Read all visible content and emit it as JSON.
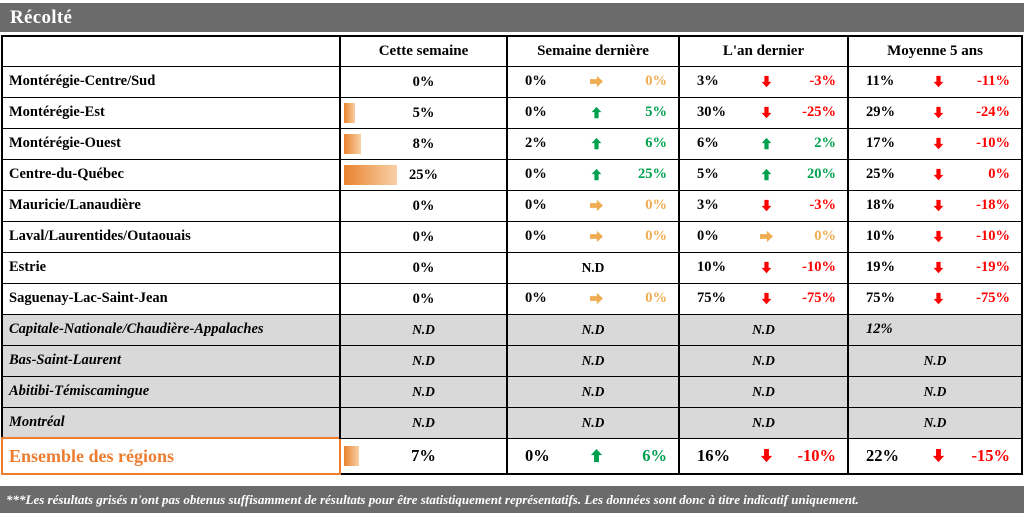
{
  "title": "Récolté",
  "headers": {
    "this_week": "Cette semaine",
    "last_week": "Semaine dernière",
    "last_year": "L'an dernier",
    "avg_5yr": "Moyenne 5 ans"
  },
  "labels": {
    "nd": "N.D"
  },
  "colors": {
    "orange": "#F0AC52",
    "green": "#00A14E",
    "red": "#FF0000",
    "brand": "#ED7D31",
    "bar_bg": "#6B6B6B",
    "gray_bg": "#D9D9D9",
    "bar_start": "#E9832E",
    "bar_end": "#F8D0A6"
  },
  "rows": [
    {
      "region": "Montérégie-Centre/Sud",
      "grayed": false,
      "this_week": {
        "value": "0%",
        "bar_pct": 0
      },
      "last_week": {
        "value": "0%",
        "arrow": "right",
        "delta": "0%",
        "tone": "orange"
      },
      "last_year": {
        "value": "3%",
        "arrow": "down",
        "delta": "-3%",
        "tone": "red"
      },
      "avg_5yr": {
        "value": "11%",
        "arrow": "down",
        "delta": "-11%",
        "tone": "red"
      }
    },
    {
      "region": "Montérégie-Est",
      "grayed": false,
      "this_week": {
        "value": "5%",
        "bar_pct": 5
      },
      "last_week": {
        "value": "0%",
        "arrow": "up",
        "delta": "5%",
        "tone": "green"
      },
      "last_year": {
        "value": "30%",
        "arrow": "down",
        "delta": "-25%",
        "tone": "red"
      },
      "avg_5yr": {
        "value": "29%",
        "arrow": "down",
        "delta": "-24%",
        "tone": "red"
      }
    },
    {
      "region": "Montérégie-Ouest",
      "grayed": false,
      "this_week": {
        "value": "8%",
        "bar_pct": 8
      },
      "last_week": {
        "value": "2%",
        "arrow": "up",
        "delta": "6%",
        "tone": "green"
      },
      "last_year": {
        "value": "6%",
        "arrow": "up",
        "delta": "2%",
        "tone": "green"
      },
      "avg_5yr": {
        "value": "17%",
        "arrow": "down",
        "delta": "-10%",
        "tone": "red"
      }
    },
    {
      "region": "Centre-du-Québec",
      "grayed": false,
      "this_week": {
        "value": "25%",
        "bar_pct": 25
      },
      "last_week": {
        "value": "0%",
        "arrow": "up",
        "delta": "25%",
        "tone": "green"
      },
      "last_year": {
        "value": "5%",
        "arrow": "up",
        "delta": "20%",
        "tone": "green"
      },
      "avg_5yr": {
        "value": "25%",
        "arrow": "down",
        "delta": "0%",
        "tone": "red"
      }
    },
    {
      "region": "Mauricie/Lanaudière",
      "grayed": false,
      "this_week": {
        "value": "0%",
        "bar_pct": 0
      },
      "last_week": {
        "value": "0%",
        "arrow": "right",
        "delta": "0%",
        "tone": "orange"
      },
      "last_year": {
        "value": "3%",
        "arrow": "down",
        "delta": "-3%",
        "tone": "red"
      },
      "avg_5yr": {
        "value": "18%",
        "arrow": "down",
        "delta": "-18%",
        "tone": "red"
      }
    },
    {
      "region": "Laval/Laurentides/Outaouais",
      "grayed": false,
      "this_week": {
        "value": "0%",
        "bar_pct": 0
      },
      "last_week": {
        "value": "0%",
        "arrow": "right",
        "delta": "0%",
        "tone": "orange"
      },
      "last_year": {
        "value": "0%",
        "arrow": "right",
        "delta": "0%",
        "tone": "orange"
      },
      "avg_5yr": {
        "value": "10%",
        "arrow": "down",
        "delta": "-10%",
        "tone": "red"
      }
    },
    {
      "region": "Estrie",
      "grayed": false,
      "this_week": {
        "value": "0%",
        "bar_pct": 0
      },
      "last_week": {
        "nd": true
      },
      "last_year": {
        "value": "10%",
        "arrow": "down",
        "delta": "-10%",
        "tone": "red"
      },
      "avg_5yr": {
        "value": "19%",
        "arrow": "down",
        "delta": "-19%",
        "tone": "red"
      }
    },
    {
      "region": "Saguenay-Lac-Saint-Jean",
      "grayed": false,
      "this_week": {
        "value": "0%",
        "bar_pct": 0
      },
      "last_week": {
        "value": "0%",
        "arrow": "right",
        "delta": "0%",
        "tone": "orange"
      },
      "last_year": {
        "value": "75%",
        "arrow": "down",
        "delta": "-75%",
        "tone": "red"
      },
      "avg_5yr": {
        "value": "75%",
        "arrow": "down",
        "delta": "-75%",
        "tone": "red"
      }
    },
    {
      "region": "Capitale-Nationale/Chaudière-Appalaches",
      "grayed": true,
      "this_week": {
        "nd": true
      },
      "last_week": {
        "nd": true
      },
      "last_year": {
        "nd": true
      },
      "avg_5yr": {
        "value": "12%"
      }
    },
    {
      "region": "Bas-Saint-Laurent",
      "grayed": true,
      "this_week": {
        "nd": true
      },
      "last_week": {
        "nd": true
      },
      "last_year": {
        "nd": true
      },
      "avg_5yr": {
        "nd": true
      }
    },
    {
      "region": "Abitibi-Témiscamingue",
      "grayed": true,
      "this_week": {
        "nd": true
      },
      "last_week": {
        "nd": true
      },
      "last_year": {
        "nd": true
      },
      "avg_5yr": {
        "nd": true
      }
    },
    {
      "region": "Montréal",
      "grayed": true,
      "this_week": {
        "nd": true
      },
      "last_week": {
        "nd": true
      },
      "last_year": {
        "nd": true
      },
      "avg_5yr": {
        "nd": true
      }
    },
    {
      "region": "Ensemble des régions",
      "grayed": false,
      "ensemble": true,
      "this_week": {
        "value": "7%",
        "bar_pct": 7
      },
      "last_week": {
        "value": "0%",
        "arrow": "up",
        "delta": "6%",
        "tone": "green"
      },
      "last_year": {
        "value": "16%",
        "arrow": "down",
        "delta": "-10%",
        "tone": "red"
      },
      "avg_5yr": {
        "value": "22%",
        "arrow": "down",
        "delta": "-15%",
        "tone": "red"
      }
    }
  ],
  "footnote": "***Les résultats grisés n'ont pas obtenus suffisamment de résultats pour être statistiquement représentatifs. Les données sont donc à titre indicatif uniquement."
}
